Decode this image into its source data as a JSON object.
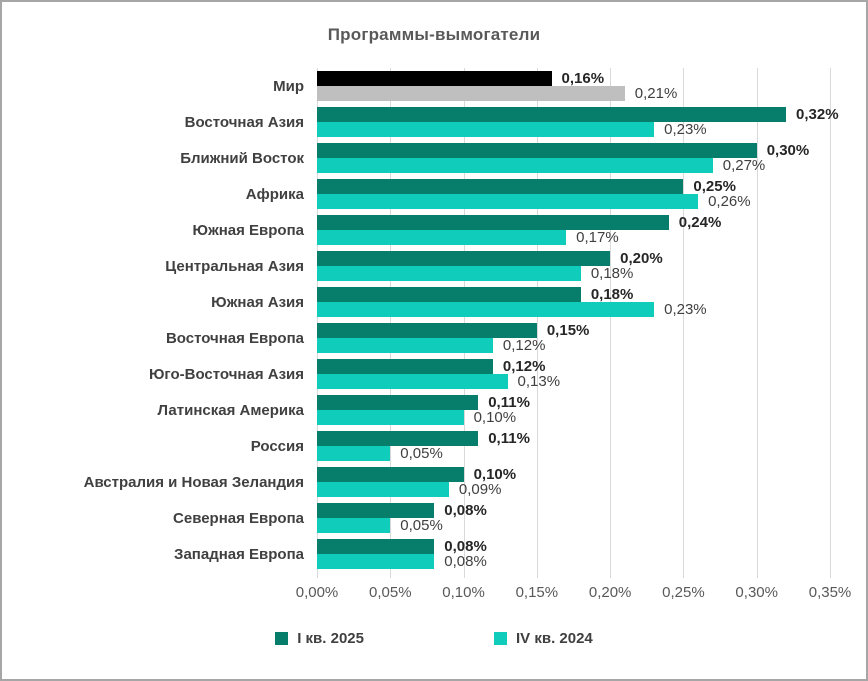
{
  "title": "Программы-вымогатели",
  "colors": {
    "series1": "#077D6B",
    "series2": "#0FCDBA",
    "world_series1": "#000000",
    "world_series2": "#BFBFBF",
    "gridline": "#D9D9D9",
    "text_dark": "#404040",
    "text_axis": "#595959"
  },
  "chart_data": {
    "type": "bar",
    "orientation": "horizontal",
    "title": "Программы-вымогатели",
    "xlim": [
      0,
      0.35
    ],
    "x_ticks": [
      "0,00%",
      "0,05%",
      "0,10%",
      "0,15%",
      "0,20%",
      "0,25%",
      "0,30%",
      "0,35%"
    ],
    "grid": "vertical",
    "legend_position": "bottom",
    "highlight_category": "Мир",
    "categories": [
      "Мир",
      "Восточная Азия",
      "Ближний Восток",
      "Африка",
      "Южная Европа",
      "Центральная Азия",
      "Южная Азия",
      "Восточная Европа",
      "Юго-Восточная Азия",
      "Латинская Америка",
      "Россия",
      "Австралия и Новая Зеландия",
      "Северная Европа",
      "Западная Европа"
    ],
    "series": [
      {
        "name": "I кв. 2025",
        "values": [
          0.16,
          0.32,
          0.3,
          0.25,
          0.24,
          0.2,
          0.18,
          0.15,
          0.12,
          0.11,
          0.11,
          0.1,
          0.08,
          0.08
        ],
        "labels": [
          "0,16%",
          "0,32%",
          "0,30%",
          "0,25%",
          "0,24%",
          "0,20%",
          "0,18%",
          "0,15%",
          "0,12%",
          "0,11%",
          "0,11%",
          "0,10%",
          "0,08%",
          "0,08%"
        ]
      },
      {
        "name": "IV кв. 2024",
        "values": [
          0.21,
          0.23,
          0.27,
          0.26,
          0.17,
          0.18,
          0.23,
          0.12,
          0.13,
          0.1,
          0.05,
          0.09,
          0.05,
          0.08
        ],
        "labels": [
          "0,21%",
          "0,23%",
          "0,27%",
          "0,26%",
          "0,17%",
          "0,18%",
          "0,23%",
          "0,12%",
          "0,13%",
          "0,10%",
          "0,05%",
          "0,09%",
          "0,05%",
          "0,08%"
        ]
      }
    ]
  },
  "legend": {
    "items": [
      {
        "label": "I кв. 2025",
        "color": "#077D6B"
      },
      {
        "label": "IV кв. 2024",
        "color": "#0FCDBA"
      }
    ]
  }
}
